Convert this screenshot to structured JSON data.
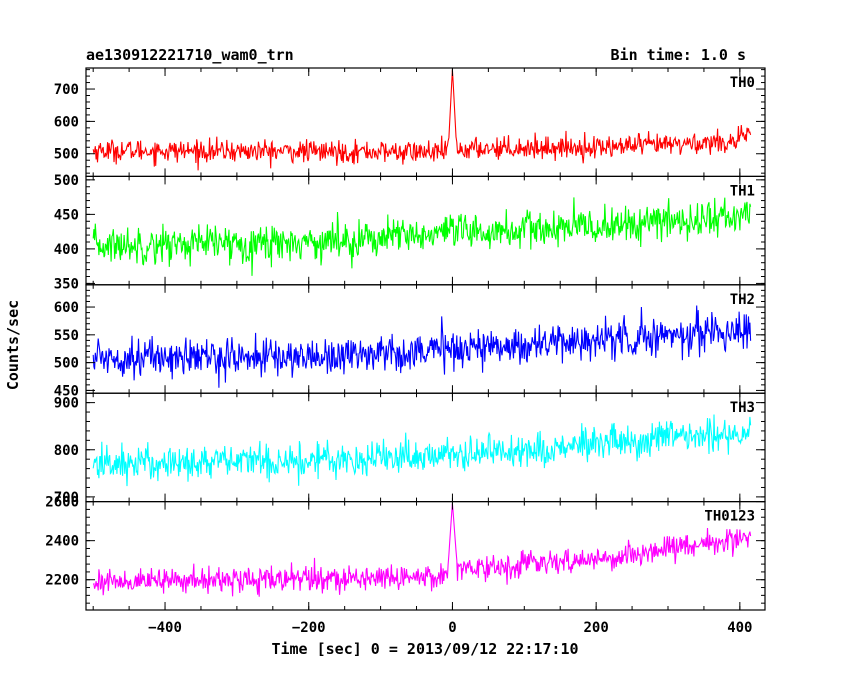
{
  "header": {
    "title": "ae130912221710_wam0_trn",
    "bin_time": "Bin time: 1.0 s"
  },
  "chart_data": {
    "type": "line",
    "xlabel": "Time [sec] 0 = 2013/09/12 22:17:10",
    "ylabel": "Counts/sec",
    "xlim": [
      -510,
      435
    ],
    "x_ticks": [
      -400,
      -200,
      0,
      200,
      400
    ],
    "x_range": [
      -500,
      415
    ],
    "panels": [
      {
        "name": "TH0",
        "color": "#ff0000",
        "ylim": [
          430,
          765
        ],
        "yticks": [
          500,
          600,
          700
        ],
        "baseline": [
          [
            -500,
            510
          ],
          [
            -10,
            505
          ],
          [
            0,
            510
          ],
          [
            50,
            518
          ],
          [
            200,
            520
          ],
          [
            300,
            528
          ],
          [
            400,
            540
          ],
          [
            415,
            560
          ]
        ],
        "noise": 38,
        "spike": {
          "x": 0,
          "peak": 760,
          "width": 5
        }
      },
      {
        "name": "TH1",
        "color": "#00ff00",
        "ylim": [
          348,
          505
        ],
        "yticks": [
          350,
          400,
          450,
          500
        ],
        "baseline": [
          [
            -500,
            405
          ],
          [
            -200,
            410
          ],
          [
            0,
            422
          ],
          [
            200,
            432
          ],
          [
            415,
            448
          ]
        ],
        "noise": 30,
        "spike": null
      },
      {
        "name": "TH2",
        "color": "#0000ff",
        "ylim": [
          445,
          640
        ],
        "yticks": [
          450,
          500,
          550,
          600
        ],
        "baseline": [
          [
            -500,
            510
          ],
          [
            -200,
            510
          ],
          [
            0,
            525
          ],
          [
            200,
            540
          ],
          [
            415,
            560
          ]
        ],
        "noise": 38,
        "spike": null
      },
      {
        "name": "TH3",
        "color": "#00ffff",
        "ylim": [
          690,
          920
        ],
        "yticks": [
          700,
          800,
          900
        ],
        "baseline": [
          [
            -500,
            770
          ],
          [
            -200,
            778
          ],
          [
            0,
            790
          ],
          [
            200,
            810
          ],
          [
            415,
            838
          ]
        ],
        "noise": 42,
        "spike": null
      },
      {
        "name": "TH0123",
        "color": "#ff00ff",
        "ylim": [
          2045,
          2600
        ],
        "yticks": [
          2200,
          2400,
          2600
        ],
        "baseline": [
          [
            -500,
            2190
          ],
          [
            -100,
            2210
          ],
          [
            -5,
            2225
          ],
          [
            0,
            2250
          ],
          [
            40,
            2265
          ],
          [
            200,
            2300
          ],
          [
            300,
            2360
          ],
          [
            415,
            2420
          ]
        ],
        "noise": 70,
        "spike": {
          "x": 0,
          "peak": 2590,
          "width": 6
        }
      }
    ]
  }
}
